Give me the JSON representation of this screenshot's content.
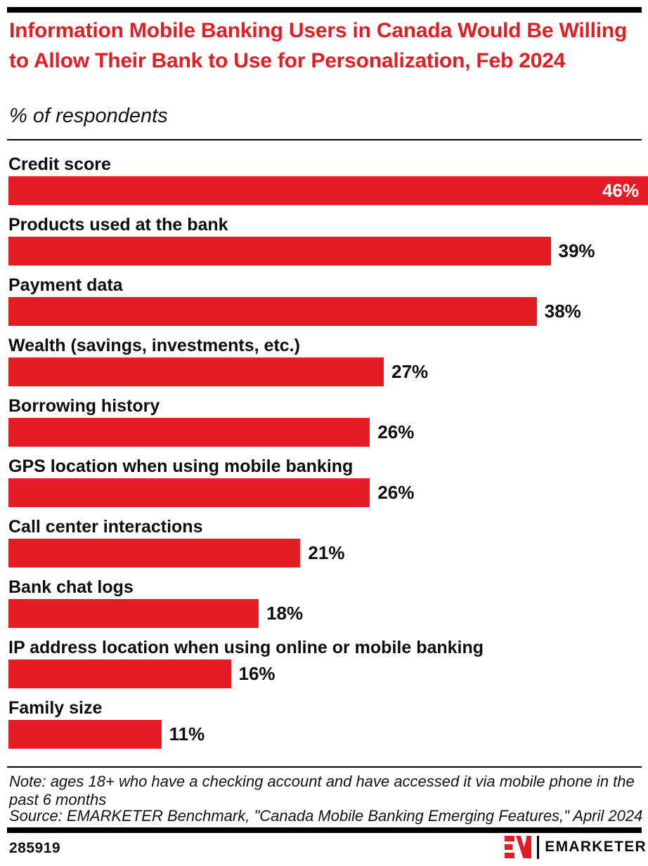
{
  "header": {
    "title": "Information Mobile Banking Users in Canada Would Be Willing to Allow Their Bank to Use for Personalization, Feb 2024",
    "subtitle": "% of respondents"
  },
  "chart_data": {
    "type": "bar",
    "orientation": "horizontal",
    "unit": "%",
    "categories": [
      "Credit score",
      "Products used at the bank",
      "Payment data",
      "Wealth (savings, investments, etc.)",
      "Borrowing history",
      "GPS location when using mobile banking",
      "Call center interactions",
      "Bank chat logs",
      "IP address location when using online or mobile banking",
      "Family size"
    ],
    "values": [
      46,
      39,
      38,
      27,
      26,
      26,
      21,
      18,
      16,
      11
    ],
    "value_labels": [
      "46%",
      "39%",
      "38%",
      "27%",
      "26%",
      "26%",
      "21%",
      "18%",
      "16%",
      "11%"
    ],
    "xlim": [
      0,
      46
    ],
    "grid": "off",
    "legend": "none",
    "bar_color": "#E31D23",
    "value_label_inside_color": "#FFFFFF",
    "value_label_outside_color": "#0D0D0D"
  },
  "note_lines": [
    "Note: ages 18+ who have a checking account and have accessed it via mobile phone in the",
    "past 6 months"
  ],
  "source": "Source: EMARKETER Benchmark, \"Canada Mobile Banking Emerging Features,\" April 2024",
  "footer": {
    "chart_id": "285919",
    "brand": "EMARKETER"
  },
  "colors": {
    "accent_red": "#E31D23",
    "text_black": "#0D0D0D",
    "rule_black": "#000000",
    "background": "#FFFFFF"
  }
}
